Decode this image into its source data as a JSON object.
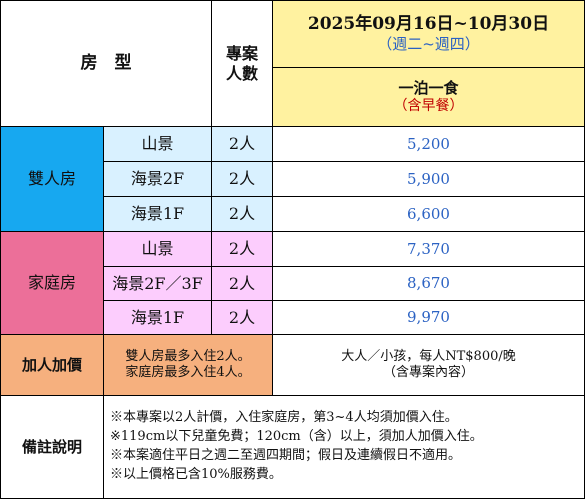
{
  "header": {
    "room_type": "房　型",
    "plan_count": [
      "專案",
      "人數"
    ],
    "date_range": "2025年09月16日~10月30日",
    "weekday_range": "（週二~週四）",
    "meal_plan": "一泊一食",
    "meal_note": "（含早餐）"
  },
  "groups": [
    {
      "name": "雙人房",
      "rows": [
        {
          "view": "山景",
          "people": "2人",
          "price": "5,200"
        },
        {
          "view": "海景2F",
          "people": "2人",
          "price": "5,900"
        },
        {
          "view": "海景1F",
          "people": "2人",
          "price": "6,600"
        }
      ]
    },
    {
      "name": "家庭房",
      "rows": [
        {
          "view": "山景",
          "people": "2人",
          "price": "7,370"
        },
        {
          "view": "海景2F／3F",
          "people": "2人",
          "price": "8,670"
        },
        {
          "view": "海景1F",
          "people": "2人",
          "price": "9,970"
        }
      ]
    }
  ],
  "extra": {
    "label": "加人加價",
    "rule_lines": [
      "雙人房最多入住2人。",
      "家庭房最多入住4人。"
    ],
    "price_lines": [
      "大人／小孩，每人NT$800/晚",
      "（含專案內容）"
    ]
  },
  "remarks": {
    "label": "備註說明",
    "lines": [
      "※本專案以2人計價，入住家庭房，第3~4人均須加價入住。",
      "※119cm以下兒童免費；120cm（含）以上，須加人加價入住。",
      "※本案適住平日之週二至週四期間；假日及連續假日不適用。",
      "※以上價格已含10%服務費。"
    ]
  },
  "colors": {
    "header_bg": "#fff2a0",
    "double_room_bg": "#17a8f0",
    "double_room_sub_bg": "#d9f1ff",
    "family_room_bg": "#ec6f99",
    "family_room_sub_bg": "#fccdfd",
    "extra_bg": "#f6b07e",
    "price_text": "#2b62c3",
    "meal_note_text": "#c00000"
  }
}
